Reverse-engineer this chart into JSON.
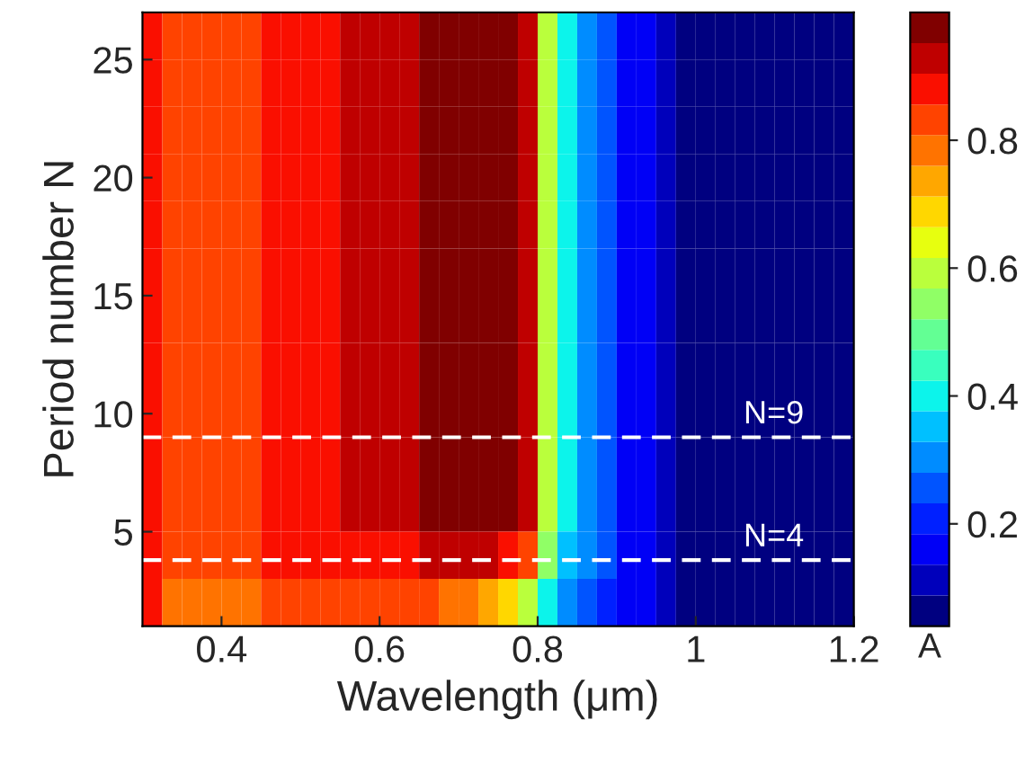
{
  "chart_data": {
    "type": "heatmap",
    "xlabel": "Wavelength (μm)",
    "ylabel": "Period number N",
    "clabel": "A",
    "xlim": [
      0.3,
      1.2
    ],
    "ylim": [
      1,
      27
    ],
    "xticks": [
      0.4,
      0.6,
      0.8,
      1,
      1.2
    ],
    "yticks": [
      5,
      10,
      15,
      20,
      25
    ],
    "clim": [
      0.04,
      1.0
    ],
    "cticks": [
      0.2,
      0.4,
      0.6,
      0.8
    ],
    "grid": false,
    "x": [
      0.3125,
      0.3375,
      0.3625,
      0.3875,
      0.4125,
      0.4375,
      0.4625,
      0.4875,
      0.5125,
      0.5375,
      0.5625,
      0.5875,
      0.6125,
      0.6375,
      0.6625,
      0.6875,
      0.7125,
      0.7375,
      0.7625,
      0.7875,
      0.8125,
      0.8375,
      0.8625,
      0.8875,
      0.9125,
      0.9375,
      0.9625,
      0.9875,
      1.0125,
      1.0375,
      1.0625,
      1.0875,
      1.1125,
      1.1375,
      1.1625,
      1.1875
    ],
    "y": [
      26,
      24,
      22,
      20,
      18,
      16,
      14,
      12,
      10,
      8,
      6,
      4,
      2
    ],
    "cells": [
      [
        0.86,
        0.82,
        0.82,
        0.82,
        0.82,
        0.82,
        0.87,
        0.87,
        0.87,
        0.87,
        0.92,
        0.92,
        0.92,
        0.92,
        0.97,
        0.97,
        0.97,
        0.97,
        0.97,
        0.95,
        0.6,
        0.38,
        0.28,
        0.24,
        0.18,
        0.18,
        0.12,
        0.07,
        0.07,
        0.07,
        0.07,
        0.07,
        0.07,
        0.07,
        0.07,
        0.07
      ],
      [
        0.86,
        0.82,
        0.82,
        0.82,
        0.82,
        0.82,
        0.87,
        0.87,
        0.87,
        0.87,
        0.92,
        0.92,
        0.92,
        0.92,
        0.97,
        0.97,
        0.97,
        0.97,
        0.97,
        0.95,
        0.6,
        0.38,
        0.28,
        0.24,
        0.18,
        0.18,
        0.12,
        0.07,
        0.07,
        0.07,
        0.07,
        0.07,
        0.07,
        0.07,
        0.07,
        0.07
      ],
      [
        0.86,
        0.82,
        0.82,
        0.82,
        0.82,
        0.82,
        0.87,
        0.87,
        0.87,
        0.87,
        0.92,
        0.92,
        0.92,
        0.92,
        0.97,
        0.97,
        0.97,
        0.97,
        0.97,
        0.95,
        0.6,
        0.38,
        0.28,
        0.24,
        0.18,
        0.18,
        0.12,
        0.07,
        0.07,
        0.07,
        0.07,
        0.07,
        0.07,
        0.07,
        0.07,
        0.07
      ],
      [
        0.86,
        0.82,
        0.82,
        0.82,
        0.82,
        0.82,
        0.87,
        0.87,
        0.87,
        0.87,
        0.92,
        0.92,
        0.92,
        0.92,
        0.97,
        0.97,
        0.97,
        0.97,
        0.97,
        0.95,
        0.6,
        0.38,
        0.28,
        0.24,
        0.18,
        0.18,
        0.12,
        0.07,
        0.07,
        0.07,
        0.07,
        0.07,
        0.07,
        0.07,
        0.07,
        0.07
      ],
      [
        0.86,
        0.82,
        0.82,
        0.82,
        0.82,
        0.82,
        0.87,
        0.87,
        0.87,
        0.87,
        0.92,
        0.92,
        0.92,
        0.92,
        0.97,
        0.97,
        0.97,
        0.97,
        0.97,
        0.95,
        0.6,
        0.38,
        0.28,
        0.24,
        0.18,
        0.18,
        0.12,
        0.07,
        0.07,
        0.07,
        0.07,
        0.07,
        0.07,
        0.07,
        0.07,
        0.07
      ],
      [
        0.86,
        0.82,
        0.82,
        0.82,
        0.82,
        0.82,
        0.87,
        0.87,
        0.87,
        0.87,
        0.92,
        0.92,
        0.92,
        0.92,
        0.97,
        0.97,
        0.97,
        0.97,
        0.97,
        0.95,
        0.6,
        0.38,
        0.28,
        0.24,
        0.18,
        0.18,
        0.12,
        0.07,
        0.07,
        0.07,
        0.07,
        0.07,
        0.07,
        0.07,
        0.07,
        0.07
      ],
      [
        0.86,
        0.82,
        0.82,
        0.82,
        0.82,
        0.82,
        0.87,
        0.87,
        0.87,
        0.87,
        0.92,
        0.92,
        0.92,
        0.92,
        0.97,
        0.97,
        0.97,
        0.97,
        0.97,
        0.95,
        0.6,
        0.38,
        0.28,
        0.24,
        0.18,
        0.18,
        0.12,
        0.07,
        0.07,
        0.07,
        0.07,
        0.07,
        0.07,
        0.07,
        0.07,
        0.07
      ],
      [
        0.86,
        0.82,
        0.82,
        0.82,
        0.82,
        0.82,
        0.87,
        0.87,
        0.87,
        0.87,
        0.92,
        0.92,
        0.92,
        0.92,
        0.97,
        0.97,
        0.97,
        0.97,
        0.97,
        0.95,
        0.6,
        0.38,
        0.28,
        0.24,
        0.18,
        0.18,
        0.12,
        0.07,
        0.07,
        0.07,
        0.07,
        0.07,
        0.07,
        0.07,
        0.07,
        0.07
      ],
      [
        0.86,
        0.82,
        0.82,
        0.82,
        0.82,
        0.82,
        0.87,
        0.87,
        0.87,
        0.87,
        0.92,
        0.92,
        0.92,
        0.92,
        0.97,
        0.97,
        0.97,
        0.97,
        0.97,
        0.95,
        0.6,
        0.38,
        0.28,
        0.24,
        0.18,
        0.18,
        0.12,
        0.07,
        0.07,
        0.07,
        0.07,
        0.07,
        0.07,
        0.07,
        0.07,
        0.07
      ],
      [
        0.86,
        0.82,
        0.82,
        0.82,
        0.82,
        0.82,
        0.87,
        0.87,
        0.87,
        0.87,
        0.92,
        0.92,
        0.92,
        0.92,
        0.97,
        0.97,
        0.97,
        0.97,
        0.97,
        0.95,
        0.6,
        0.38,
        0.28,
        0.24,
        0.18,
        0.18,
        0.12,
        0.07,
        0.07,
        0.07,
        0.07,
        0.07,
        0.07,
        0.07,
        0.07,
        0.07
      ],
      [
        0.86,
        0.82,
        0.82,
        0.82,
        0.82,
        0.82,
        0.87,
        0.87,
        0.87,
        0.87,
        0.92,
        0.92,
        0.92,
        0.92,
        0.97,
        0.97,
        0.97,
        0.97,
        0.97,
        0.95,
        0.6,
        0.38,
        0.28,
        0.24,
        0.18,
        0.18,
        0.12,
        0.07,
        0.07,
        0.07,
        0.07,
        0.07,
        0.07,
        0.07,
        0.07,
        0.07
      ],
      [
        0.86,
        0.82,
        0.82,
        0.82,
        0.82,
        0.82,
        0.87,
        0.87,
        0.87,
        0.87,
        0.9,
        0.9,
        0.9,
        0.9,
        0.92,
        0.92,
        0.92,
        0.92,
        0.9,
        0.85,
        0.55,
        0.35,
        0.28,
        0.24,
        0.18,
        0.18,
        0.12,
        0.07,
        0.07,
        0.07,
        0.07,
        0.07,
        0.07,
        0.07,
        0.07,
        0.07
      ],
      [
        0.86,
        0.8,
        0.8,
        0.8,
        0.8,
        0.8,
        0.85,
        0.85,
        0.85,
        0.85,
        0.85,
        0.85,
        0.84,
        0.82,
        0.82,
        0.8,
        0.78,
        0.75,
        0.7,
        0.6,
        0.4,
        0.3,
        0.26,
        0.22,
        0.18,
        0.18,
        0.12,
        0.07,
        0.07,
        0.07,
        0.07,
        0.07,
        0.07,
        0.07,
        0.07,
        0.07
      ]
    ],
    "ref_lines": [
      {
        "axis": "y",
        "value": 9,
        "label": "N=9",
        "color": "#ffffff",
        "line_style": "dashed"
      },
      {
        "axis": "y",
        "value": 3.8,
        "label": "N=4",
        "color": "#ffffff",
        "line_style": "dashed"
      }
    ]
  }
}
